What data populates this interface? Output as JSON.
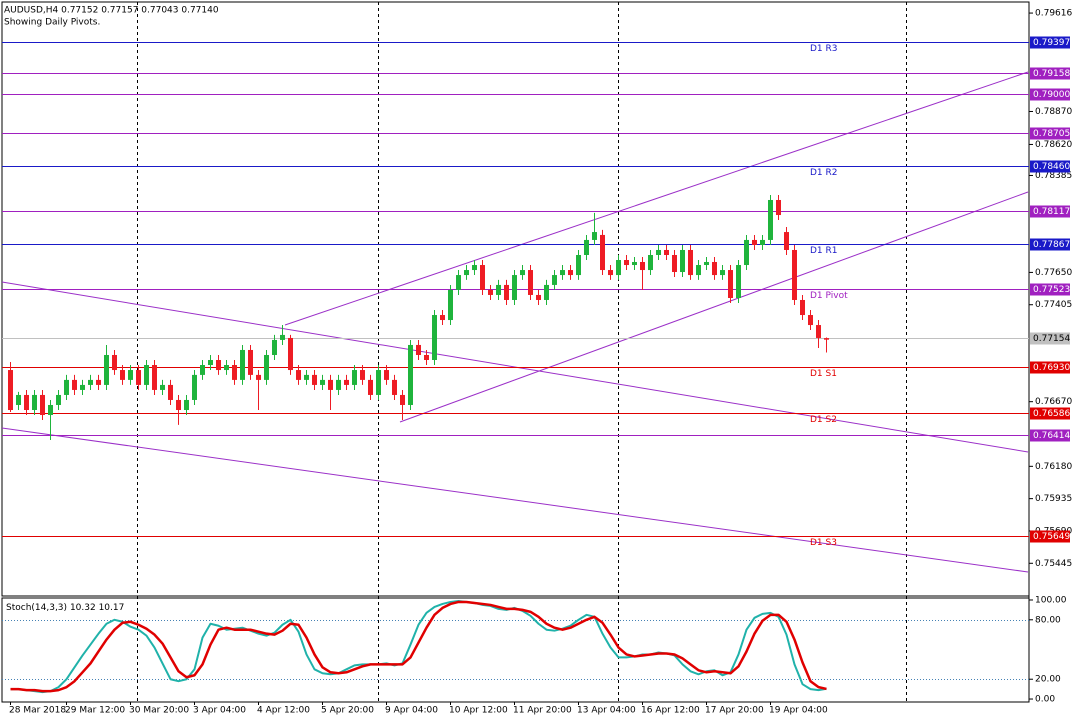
{
  "header": "AUDUSD,H4  0.77152 0.77157 0.77043 0.77140",
  "subheader": "Showing Daily Pivots.",
  "chart_data": [
    {
      "type": "candlestick",
      "categories": [
        "28 Mar 2018",
        null,
        null,
        null,
        null,
        null,
        null,
        "29 Mar 12:00",
        null,
        null,
        null,
        null,
        null,
        null,
        null,
        "30 Mar 20:00",
        null,
        null,
        null,
        null,
        null,
        null,
        null,
        "3 Apr 04:00",
        null,
        null,
        null,
        null,
        null,
        null,
        null,
        "4 Apr 12:00",
        null,
        null,
        null,
        null,
        null,
        null,
        null,
        "5 Apr 20:00",
        null,
        null,
        null,
        null,
        null,
        null,
        null,
        "9 Apr 04:00",
        null,
        null,
        null,
        null,
        null,
        null,
        null,
        "10 Apr 12:00",
        null,
        null,
        null,
        null,
        null,
        null,
        null,
        "11 Apr 20:00",
        null,
        null,
        null,
        null,
        null,
        null,
        null,
        "13 Apr 04:00",
        null,
        null,
        null,
        null,
        null,
        null,
        null,
        "16 Apr 12:00",
        null,
        null,
        null,
        null,
        null,
        null,
        null,
        "17 Apr 20:00",
        null,
        null,
        null,
        null,
        null,
        null,
        null,
        "19 Apr 04:00",
        null,
        null,
        null,
        null,
        null,
        null,
        null
      ],
      "open": [
        0.7691,
        0.76645,
        0.76721,
        0.76607,
        0.76721,
        0.76569,
        0.76645,
        0.76721,
        0.76835,
        0.76759,
        0.76797,
        0.76835,
        0.76797,
        0.77024,
        0.7691,
        0.76835,
        0.7691,
        0.76797,
        0.76948,
        0.76759,
        0.76797,
        0.76683,
        0.76607,
        0.76683,
        0.76873,
        0.76948,
        0.76986,
        0.7691,
        0.76948,
        0.76835,
        0.77062,
        0.76873,
        0.76835,
        0.77024,
        0.77138,
        0.77153,
        0.7691,
        0.76835,
        0.76873,
        0.76797,
        0.76835,
        0.76759,
        0.76835,
        0.76797,
        0.7691,
        0.76835,
        0.76721,
        0.7691,
        0.76835,
        0.76721,
        0.76645,
        0.771,
        0.77024,
        0.76986,
        0.77327,
        0.77289,
        0.77517,
        0.7763,
        0.77668,
        0.77706,
        0.77517,
        0.77479,
        0.77555,
        0.77441,
        0.7763,
        0.77668,
        0.77479,
        0.77441,
        0.77555,
        0.7763,
        0.77668,
        0.7763,
        0.77782,
        0.77896,
        0.77934,
        0.77668,
        0.7763,
        0.77744,
        0.77706,
        0.77729,
        0.77668,
        0.77782,
        0.7782,
        0.77782,
        0.77653,
        0.7782,
        0.7763,
        0.77706,
        0.77729,
        0.7763,
        0.77668,
        0.77456,
        0.77706,
        0.77896,
        0.77858,
        0.77896,
        0.78199,
        0.77956,
        0.7782,
        0.77441,
        0.77327,
        0.77251,
        0.77152
      ],
      "high": [
        0.76971,
        0.76744,
        0.76759,
        0.76759,
        0.76759,
        0.76683,
        0.76759,
        0.76873,
        0.76873,
        0.76835,
        0.76873,
        0.76873,
        0.771,
        0.77062,
        0.76948,
        0.76948,
        0.76948,
        0.76986,
        0.76986,
        0.76835,
        0.76835,
        0.76721,
        0.76721,
        0.7691,
        0.76986,
        0.77024,
        0.77024,
        0.76986,
        0.76986,
        0.771,
        0.771,
        0.7691,
        0.77062,
        0.77176,
        0.77251,
        0.77176,
        0.76948,
        0.7691,
        0.7691,
        0.76873,
        0.76873,
        0.76873,
        0.76873,
        0.76948,
        0.76948,
        0.76873,
        0.76948,
        0.76948,
        0.76873,
        0.76759,
        0.77138,
        0.77138,
        0.77062,
        0.77365,
        0.77365,
        0.77555,
        0.77668,
        0.77706,
        0.77744,
        0.77744,
        0.77555,
        0.77593,
        0.77593,
        0.77668,
        0.77706,
        0.77706,
        0.77517,
        0.77593,
        0.77668,
        0.77706,
        0.77706,
        0.7782,
        0.77934,
        0.78101,
        0.77972,
        0.77706,
        0.77782,
        0.77782,
        0.77767,
        0.77767,
        0.7782,
        0.77858,
        0.77858,
        0.7782,
        0.77858,
        0.77858,
        0.77744,
        0.77767,
        0.77767,
        0.77706,
        0.77706,
        0.77744,
        0.77934,
        0.77934,
        0.77934,
        0.78237,
        0.78237,
        0.77994,
        0.77858,
        0.77479,
        0.77365,
        0.77289,
        0.77157
      ],
      "low": [
        0.76592,
        0.76607,
        0.76569,
        0.76569,
        0.76531,
        0.7638,
        0.76607,
        0.76683,
        0.76721,
        0.76721,
        0.76759,
        0.76759,
        0.76759,
        0.76873,
        0.76797,
        0.76797,
        0.76759,
        0.76759,
        0.76721,
        0.76721,
        0.76645,
        0.76494,
        0.76569,
        0.76645,
        0.76835,
        0.7691,
        0.76873,
        0.76873,
        0.76797,
        0.76797,
        0.76835,
        0.76607,
        0.76797,
        0.76986,
        0.771,
        0.76873,
        0.76797,
        0.76797,
        0.76759,
        0.76759,
        0.76607,
        0.76721,
        0.76759,
        0.76759,
        0.76797,
        0.76683,
        0.76683,
        0.76797,
        0.76683,
        0.76531,
        0.76607,
        0.76986,
        0.76948,
        0.76948,
        0.77251,
        0.77251,
        0.77479,
        0.77593,
        0.7763,
        0.77479,
        0.77441,
        0.77441,
        0.77403,
        0.77403,
        0.77593,
        0.77441,
        0.77403,
        0.77403,
        0.77517,
        0.77593,
        0.77593,
        0.77593,
        0.77744,
        0.77858,
        0.7763,
        0.77593,
        0.77593,
        0.77668,
        0.77668,
        0.77517,
        0.7763,
        0.77744,
        0.77744,
        0.77615,
        0.77615,
        0.77593,
        0.77593,
        0.77668,
        0.77593,
        0.77593,
        0.77418,
        0.77418,
        0.77668,
        0.7782,
        0.7782,
        0.77858,
        0.78047,
        0.77782,
        0.77403,
        0.77289,
        0.77213,
        0.77077,
        0.77043
      ],
      "close": [
        0.76607,
        0.76721,
        0.76607,
        0.76721,
        0.76569,
        0.76645,
        0.76721,
        0.76835,
        0.76759,
        0.76797,
        0.76835,
        0.76797,
        0.77024,
        0.7691,
        0.76835,
        0.7691,
        0.76797,
        0.76948,
        0.76759,
        0.76797,
        0.76683,
        0.76607,
        0.76683,
        0.76873,
        0.76948,
        0.76986,
        0.7691,
        0.76948,
        0.76835,
        0.77062,
        0.76873,
        0.76835,
        0.77024,
        0.77138,
        0.77176,
        0.7691,
        0.76835,
        0.76873,
        0.76797,
        0.76835,
        0.76759,
        0.76835,
        0.76797,
        0.7691,
        0.76835,
        0.76721,
        0.7691,
        0.76835,
        0.76721,
        0.76645,
        0.771,
        0.77024,
        0.76986,
        0.77327,
        0.77289,
        0.77517,
        0.7763,
        0.77668,
        0.77706,
        0.77517,
        0.77479,
        0.77555,
        0.77441,
        0.7763,
        0.77668,
        0.77479,
        0.77441,
        0.77555,
        0.7763,
        0.77668,
        0.7763,
        0.77782,
        0.77896,
        0.77956,
        0.77668,
        0.7763,
        0.77744,
        0.77706,
        0.77729,
        0.77668,
        0.77782,
        0.7782,
        0.77782,
        0.77653,
        0.7782,
        0.7763,
        0.77706,
        0.77729,
        0.7763,
        0.77668,
        0.77456,
        0.77706,
        0.77896,
        0.77858,
        0.77896,
        0.78199,
        0.78085,
        0.7782,
        0.77441,
        0.77327,
        0.77251,
        0.77153,
        0.7714
      ],
      "up_color": "#1fb43c",
      "down_color": "#ee1c24",
      "ylim": [
        0.75197,
        0.79715
      ],
      "yticks": [
        0.79616,
        {
          "value": 0.7887,
          "label": "0.78870"
        },
        {
          "value": 0.7862,
          "label": "0.78620"
        },
        0.78385,
        {
          "value": 0.7765,
          "label": "0.77650"
        },
        0.77405,
        {
          "value": 0.7667,
          "label": "0.76670"
        },
        {
          "value": 0.7618,
          "label": "0.76180"
        },
        0.75935,
        {
          "value": 0.7569,
          "label": "0.75690"
        },
        0.75445
      ],
      "grid": false,
      "levels": [
        {
          "value": 0.79397,
          "color": "#1a1ac8",
          "name": "D1 R3"
        },
        {
          "value": 0.79158,
          "color": "#a020c0"
        },
        {
          "value": 0.79,
          "label": "0.79000",
          "color": "#a020c0"
        },
        {
          "value": 0.78705,
          "color": "#a020c0"
        },
        {
          "value": 0.7846,
          "label": "0.78460",
          "color": "#1a1ac8",
          "name": "D1 R2"
        },
        {
          "value": 0.78117,
          "color": "#a020c0"
        },
        {
          "value": 0.77867,
          "color": "#1a1ac8",
          "name": "D1 R1"
        },
        {
          "value": 0.77523,
          "color": "#a020c0",
          "name": "D1 Pivot"
        },
        {
          "value": 0.77154,
          "color": "#c0c0c0"
        },
        {
          "value": 0.7693,
          "label": "0.76930",
          "color": "#e00000",
          "name": "D1 S1"
        },
        {
          "value": 0.76586,
          "color": "#e00000",
          "name": "D1 S2"
        },
        {
          "value": 0.76414,
          "color": "#a020c0"
        },
        {
          "value": 0.75649,
          "color": "#e00000",
          "name": "D1 S3"
        }
      ]
    },
    {
      "type": "line",
      "title": "Stoch(14,3,3)",
      "series": [
        {
          "color": "#20b2aa",
          "values": [
            10,
            10,
            9,
            8,
            7,
            8,
            12,
            20,
            32,
            44,
            55,
            66,
            76,
            80,
            78,
            73,
            70,
            64,
            52,
            36,
            20,
            18,
            20,
            30,
            62,
            76,
            74,
            70,
            71,
            72,
            69,
            66,
            64,
            67,
            75,
            80,
            68,
            45,
            30,
            26,
            25,
            26,
            30,
            34,
            35,
            35,
            35,
            36,
            34,
            36,
            55,
            75,
            87,
            93,
            96,
            98,
            99,
            98,
            97,
            95,
            94,
            91,
            90,
            92,
            89,
            84,
            76,
            70,
            69,
            71,
            74,
            80,
            85,
            83,
            66,
            52,
            42,
            42,
            43,
            45,
            45,
            47,
            46,
            44,
            35,
            28,
            25,
            28,
            29,
            24,
            27,
            45,
            70,
            82,
            86,
            87,
            83,
            65,
            35,
            15,
            10,
            9,
            10.32
          ]
        },
        {
          "color": "#e00000",
          "values": [
            10,
            10,
            9,
            9,
            8,
            8,
            9,
            12,
            18,
            27,
            36,
            48,
            60,
            70,
            77,
            78,
            75,
            71,
            65,
            56,
            42,
            28,
            22,
            24,
            35,
            55,
            70,
            72,
            70,
            70,
            70,
            68,
            66,
            65,
            69,
            76,
            75,
            62,
            45,
            32,
            27,
            26,
            27,
            30,
            33,
            35,
            35,
            35,
            35,
            35,
            42,
            57,
            72,
            85,
            92,
            96,
            98,
            98,
            97,
            96,
            95,
            93,
            91,
            91,
            90,
            88,
            83,
            76,
            72,
            70,
            72,
            76,
            80,
            83,
            77,
            65,
            52,
            45,
            43,
            44,
            45,
            46,
            46,
            45,
            41,
            35,
            29,
            27,
            28,
            27,
            26,
            33,
            48,
            66,
            79,
            85,
            85,
            78,
            60,
            37,
            18,
            12,
            10.17
          ]
        }
      ],
      "ylim": [
        -3,
        102
      ],
      "yticks": [
        {
          "value": 100,
          "label": "100.00"
        },
        {
          "value": 80,
          "label": "80.00"
        },
        {
          "value": 20,
          "label": "20.00"
        },
        {
          "value": 0,
          "label": "0.00"
        }
      ],
      "grid_at": [
        80,
        20
      ]
    }
  ]
}
